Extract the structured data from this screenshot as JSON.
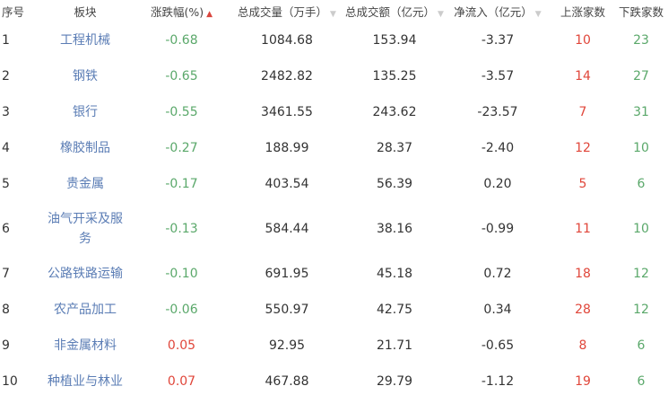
{
  "headers": {
    "index": "序号",
    "sector": "板块",
    "change": "涨跌幅(%)",
    "volume": "总成交量（万手）",
    "amount": "总成交额（亿元）",
    "net_inflow": "净流入（亿元）",
    "up_count": "上涨家数",
    "down_count": "下跌家数"
  },
  "sort": {
    "change": "asc-active",
    "volume": "inactive",
    "amount": "inactive",
    "net_inflow": "inactive"
  },
  "colors": {
    "up": "#e0463a",
    "down": "#5aa86a",
    "link": "#5b7db5"
  },
  "rows": [
    {
      "index": "1",
      "sector": "工程机械",
      "change": "-0.68",
      "volume": "1084.68",
      "amount": "153.94",
      "net_inflow": "-3.37",
      "up": "10",
      "down": "23"
    },
    {
      "index": "2",
      "sector": "钢铁",
      "change": "-0.65",
      "volume": "2482.82",
      "amount": "135.25",
      "net_inflow": "-3.57",
      "up": "14",
      "down": "27"
    },
    {
      "index": "3",
      "sector": "银行",
      "change": "-0.55",
      "volume": "3461.55",
      "amount": "243.62",
      "net_inflow": "-23.57",
      "up": "7",
      "down": "31"
    },
    {
      "index": "4",
      "sector": "橡胶制品",
      "change": "-0.27",
      "volume": "188.99",
      "amount": "28.37",
      "net_inflow": "-2.40",
      "up": "12",
      "down": "10"
    },
    {
      "index": "5",
      "sector": "贵金属",
      "change": "-0.17",
      "volume": "403.54",
      "amount": "56.39",
      "net_inflow": "0.20",
      "up": "5",
      "down": "6"
    },
    {
      "index": "6",
      "sector": "油气开采及服务",
      "change": "-0.13",
      "volume": "584.44",
      "amount": "38.16",
      "net_inflow": "-0.99",
      "up": "11",
      "down": "10"
    },
    {
      "index": "7",
      "sector": "公路铁路运输",
      "change": "-0.10",
      "volume": "691.95",
      "amount": "45.18",
      "net_inflow": "0.72",
      "up": "18",
      "down": "12"
    },
    {
      "index": "8",
      "sector": "农产品加工",
      "change": "-0.06",
      "volume": "550.97",
      "amount": "42.75",
      "net_inflow": "0.34",
      "up": "28",
      "down": "12"
    },
    {
      "index": "9",
      "sector": "非金属材料",
      "change": "0.05",
      "volume": "92.95",
      "amount": "21.71",
      "net_inflow": "-0.65",
      "up": "8",
      "down": "6"
    },
    {
      "index": "10",
      "sector": "种植业与林业",
      "change": "0.07",
      "volume": "467.88",
      "amount": "29.79",
      "net_inflow": "-1.12",
      "up": "19",
      "down": "6"
    }
  ]
}
